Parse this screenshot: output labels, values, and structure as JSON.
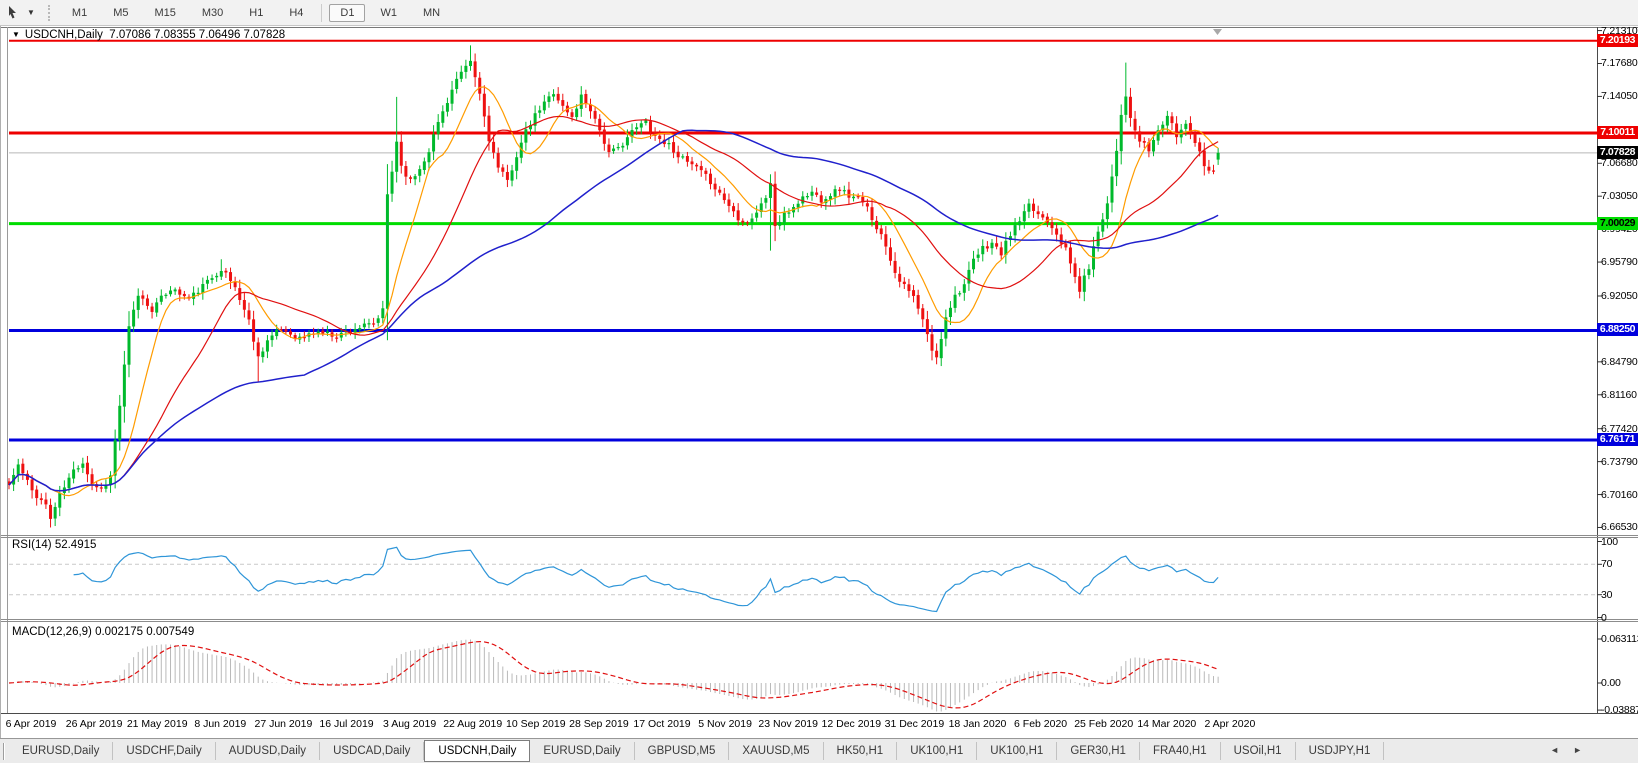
{
  "toolbar": {
    "timeframes": [
      "M1",
      "M5",
      "M15",
      "M30",
      "H1",
      "H4",
      "D1",
      "W1",
      "MN"
    ],
    "active_timeframe": "D1"
  },
  "chart": {
    "symbol_period": "USDCNH,Daily",
    "ohlc_text": "7.07086 7.08355 7.06496 7.07828",
    "collapse_icon": "triangle-down-icon",
    "shift_marker_icon": "chart-shift-marker"
  },
  "price_axis": {
    "ticks": [
      {
        "label": "7.21310",
        "value": 7.2131
      },
      {
        "label": "7.17680",
        "value": 7.1768
      },
      {
        "label": "7.14050",
        "value": 7.1405
      },
      {
        "label": "7.06680",
        "value": 7.0668
      },
      {
        "label": "7.03050",
        "value": 7.0305
      },
      {
        "label": "6.99420",
        "value": 6.9942
      },
      {
        "label": "6.95790",
        "value": 6.9579
      },
      {
        "label": "6.92050",
        "value": 6.9205
      },
      {
        "label": "6.84790",
        "value": 6.8479
      },
      {
        "label": "6.81160",
        "value": 6.8116
      },
      {
        "label": "6.77420",
        "value": 6.7742
      },
      {
        "label": "6.73790",
        "value": 6.7379
      },
      {
        "label": "6.70160",
        "value": 6.7016
      },
      {
        "label": "6.66530",
        "value": 6.6653
      }
    ],
    "levels": [
      {
        "label": "7.20193",
        "value": 7.20193,
        "color": "#ee0000",
        "text_color": "#ffffff",
        "line_width": 2
      },
      {
        "label": "7.10011",
        "value": 7.10011,
        "color": "#ee0000",
        "text_color": "#ffffff",
        "line_width": 3
      },
      {
        "label": "7.00029",
        "value": 7.00029,
        "color": "#00dd00",
        "text_color": "#000000",
        "line_width": 3
      },
      {
        "label": "6.88250",
        "value": 6.8825,
        "color": "#0000dd",
        "text_color": "#ffffff",
        "line_width": 3
      },
      {
        "label": "6.76171",
        "value": 6.76171,
        "color": "#0000dd",
        "text_color": "#ffffff",
        "line_width": 3
      }
    ],
    "current": {
      "label": "7.07828",
      "value": 7.07828,
      "color": "#000000",
      "text_color": "#ffffff",
      "line_color": "#b6b6b6"
    }
  },
  "rsi_panel": {
    "label": "RSI(14) 52.4915",
    "ticks": [
      {
        "label": "100",
        "value": 100
      },
      {
        "label": "70",
        "value": 70
      },
      {
        "label": "30",
        "value": 30
      },
      {
        "label": "0",
        "value": 0
      }
    ],
    "dashed_levels": [
      70,
      30
    ]
  },
  "macd_panel": {
    "label": "MACD(12,26,9) 0.002175 0.007549",
    "ticks": [
      {
        "label": "0.063113",
        "value": 0.063113
      },
      {
        "label": "0.00",
        "value": 0
      },
      {
        "label": "-0.038873",
        "value": -0.038873
      }
    ]
  },
  "date_axis": {
    "labels": [
      "6 Apr 2019",
      "26 Apr 2019",
      "21 May 2019",
      "8 Jun 2019",
      "27 Jun 2019",
      "16 Jul 2019",
      "3 Aug 2019",
      "22 Aug 2019",
      "10 Sep 2019",
      "28 Sep 2019",
      "17 Oct 2019",
      "5 Nov 2019",
      "23 Nov 2019",
      "12 Dec 2019",
      "31 Dec 2019",
      "18 Jan 2020",
      "6 Feb 2020",
      "25 Feb 2020",
      "14 Mar 2020",
      "2 Apr 2020"
    ]
  },
  "tabs": {
    "items": [
      "EURUSD,Daily",
      "USDCHF,Daily",
      "AUDUSD,Daily",
      "USDCAD,Daily",
      "USDCNH,Daily",
      "EURUSD,Daily",
      "GBPUSD,M5",
      "XAUUSD,M5",
      "HK50,H1",
      "UK100,H1",
      "UK100,H1",
      "GER30,H1",
      "FRA40,H1",
      "USOil,H1",
      "USDJPY,H1"
    ],
    "active_index": 4,
    "scroll_left_icon": "left-arrow-icon",
    "scroll_right_icon": "right-arrow-icon",
    "scroll_arrows": "◄►"
  },
  "chart_data": {
    "type": "candlestick",
    "symbol": "USDCNH",
    "period": "Daily",
    "visible_range": {
      "start": "6 Apr 2019",
      "end": "2 Apr 2020"
    },
    "num_days": 263,
    "noise_seed": 11,
    "last_candle": {
      "open": 7.07086,
      "high": 7.08355,
      "low": 7.06496,
      "close": 7.07828
    },
    "close_keyframes": [
      [
        0,
        6.712
      ],
      [
        2,
        6.734
      ],
      [
        5,
        6.706
      ],
      [
        8,
        6.69
      ],
      [
        9,
        6.6751
      ],
      [
        11,
        6.701
      ],
      [
        14,
        6.728
      ],
      [
        16,
        6.738
      ],
      [
        18,
        6.713
      ],
      [
        20,
        6.708
      ],
      [
        22,
        6.722
      ],
      [
        24,
        6.8
      ],
      [
        26,
        6.885
      ],
      [
        28,
        6.922
      ],
      [
        31,
        6.906
      ],
      [
        35,
        6.929
      ],
      [
        39,
        6.917
      ],
      [
        43,
        6.936
      ],
      [
        46,
        6.951
      ],
      [
        49,
        6.93
      ],
      [
        52,
        6.893
      ],
      [
        54,
        6.853
      ],
      [
        56,
        6.872
      ],
      [
        59,
        6.884
      ],
      [
        63,
        6.874
      ],
      [
        67,
        6.881
      ],
      [
        71,
        6.877
      ],
      [
        75,
        6.885
      ],
      [
        79,
        6.889
      ],
      [
        81,
        6.904
      ],
      [
        82,
        7.032
      ],
      [
        83,
        7.058
      ],
      [
        84,
        7.092
      ],
      [
        85,
        7.064
      ],
      [
        87,
        7.047
      ],
      [
        89,
        7.061
      ],
      [
        91,
        7.082
      ],
      [
        93,
        7.112
      ],
      [
        95,
        7.136
      ],
      [
        97,
        7.159
      ],
      [
        99,
        7.171
      ],
      [
        100,
        7.179
      ],
      [
        102,
        7.143
      ],
      [
        104,
        7.094
      ],
      [
        106,
        7.061
      ],
      [
        108,
        7.047
      ],
      [
        110,
        7.076
      ],
      [
        112,
        7.101
      ],
      [
        114,
        7.119
      ],
      [
        116,
        7.133
      ],
      [
        118,
        7.146
      ],
      [
        120,
        7.129
      ],
      [
        122,
        7.117
      ],
      [
        124,
        7.141
      ],
      [
        126,
        7.127
      ],
      [
        128,
        7.104
      ],
      [
        130,
        7.077
      ],
      [
        132,
        7.083
      ],
      [
        134,
        7.096
      ],
      [
        136,
        7.106
      ],
      [
        138,
        7.113
      ],
      [
        140,
        7.097
      ],
      [
        143,
        7.087
      ],
      [
        146,
        7.071
      ],
      [
        149,
        7.061
      ],
      [
        152,
        7.047
      ],
      [
        155,
        7.027
      ],
      [
        158,
        7.007
      ],
      [
        160,
        7.002
      ],
      [
        162,
        7.013
      ],
      [
        164,
        7.029
      ],
      [
        165,
        7.046
      ],
      [
        166,
        6.997
      ],
      [
        168,
        7.009
      ],
      [
        170,
        7.019
      ],
      [
        172,
        7.029
      ],
      [
        174,
        7.035
      ],
      [
        176,
        7.027
      ],
      [
        178,
        7.033
      ],
      [
        180,
        7.039
      ],
      [
        182,
        7.031
      ],
      [
        184,
        7.027
      ],
      [
        186,
        7.017
      ],
      [
        188,
        6.997
      ],
      [
        190,
        6.977
      ],
      [
        192,
        6.947
      ],
      [
        194,
        6.931
      ],
      [
        196,
        6.919
      ],
      [
        198,
        6.893
      ],
      [
        200,
        6.861
      ],
      [
        201,
        6.851
      ],
      [
        203,
        6.899
      ],
      [
        205,
        6.921
      ],
      [
        207,
        6.933
      ],
      [
        209,
        6.959
      ],
      [
        211,
        6.973
      ],
      [
        213,
        6.979
      ],
      [
        215,
        6.967
      ],
      [
        217,
        6.989
      ],
      [
        219,
        7.003
      ],
      [
        221,
        7.019
      ],
      [
        223,
        7.011
      ],
      [
        225,
        7.004
      ],
      [
        227,
        6.991
      ],
      [
        229,
        6.971
      ],
      [
        231,
        6.941
      ],
      [
        232,
        6.927
      ],
      [
        234,
        6.953
      ],
      [
        236,
        6.993
      ],
      [
        238,
        7.023
      ],
      [
        240,
        7.083
      ],
      [
        241,
        7.121
      ],
      [
        242,
        7.143
      ],
      [
        243,
        7.114
      ],
      [
        245,
        7.091
      ],
      [
        247,
        7.081
      ],
      [
        249,
        7.103
      ],
      [
        251,
        7.119
      ],
      [
        253,
        7.097
      ],
      [
        255,
        7.111
      ],
      [
        257,
        7.091
      ],
      [
        259,
        7.067
      ],
      [
        261,
        7.056
      ],
      [
        262,
        7.078
      ]
    ],
    "extremes": [
      {
        "day": 9,
        "low": 6.6653
      },
      {
        "day": 46,
        "high": 6.961
      },
      {
        "day": 54,
        "low": 6.826
      },
      {
        "day": 84,
        "high": 7.14
      },
      {
        "day": 100,
        "high": 7.1968
      },
      {
        "day": 165,
        "high": 7.0545,
        "low": 6.9705
      },
      {
        "day": 201,
        "low": 6.8452
      },
      {
        "day": 242,
        "high": 7.1778
      }
    ],
    "indicators": {
      "moving_averages": [
        {
          "period": 10,
          "color": "#ff9c00"
        },
        {
          "period": 25,
          "color": "#e01010"
        },
        {
          "period": 65,
          "color": "#2020cc"
        }
      ],
      "rsi": {
        "period": 14,
        "current": 52.4915,
        "range": [
          0,
          100
        ],
        "levels": [
          70,
          30
        ],
        "color": "#2e95d8"
      },
      "macd": {
        "fast": 12,
        "slow": 26,
        "signal": 9,
        "current_main": 0.002175,
        "current_signal": 0.007549,
        "axis_max": 0.063113,
        "axis_min": -0.038873,
        "hist_color": "#b9b9b9",
        "signal_color": "#e01010"
      }
    },
    "colors": {
      "bull": "#00b92c",
      "bear": "#ee1111",
      "current_line": "#b6b6b6"
    }
  }
}
